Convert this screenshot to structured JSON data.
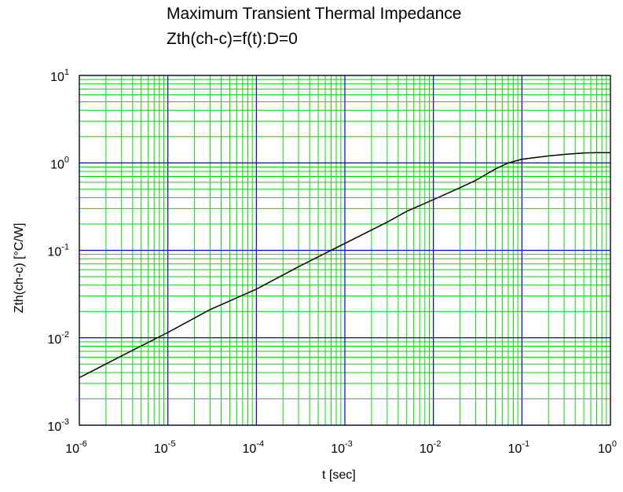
{
  "chart_data": {
    "type": "line",
    "title": "Maximum Transient Thermal Impedance",
    "subtitle": "Zth(ch-c)=f(t):D=0",
    "xlabel": "t [sec]",
    "ylabel": "Zth(ch-c) [°C/W]",
    "x_scale": "log",
    "y_scale": "log",
    "xlim": [
      1e-06,
      1
    ],
    "ylim": [
      0.001,
      10
    ],
    "grid": true,
    "colors": {
      "major_grid": "#0000cc",
      "minor_grid": "#00dd00",
      "curve": "#000000"
    },
    "x_tick_labels": [
      {
        "base": "10",
        "exp": "-6"
      },
      {
        "base": "10",
        "exp": "-5"
      },
      {
        "base": "10",
        "exp": "-4"
      },
      {
        "base": "10",
        "exp": "-3"
      },
      {
        "base": "10",
        "exp": "-2"
      },
      {
        "base": "10",
        "exp": "-1"
      },
      {
        "base": "10",
        "exp": "0"
      }
    ],
    "y_tick_labels": [
      {
        "base": "10",
        "exp": "-3"
      },
      {
        "base": "10",
        "exp": "-2"
      },
      {
        "base": "10",
        "exp": "-1"
      },
      {
        "base": "10",
        "exp": "0"
      },
      {
        "base": "10",
        "exp": "1"
      }
    ],
    "series": [
      {
        "x": [
          1e-06,
          3e-06,
          1e-05,
          3e-05,
          0.0001,
          0.0003,
          0.001,
          0.003,
          0.005,
          0.01,
          0.02,
          0.03,
          0.05,
          0.07,
          0.1,
          0.2,
          0.3,
          0.5,
          0.7,
          1
        ],
        "y": [
          0.0035,
          0.0062,
          0.0115,
          0.021,
          0.036,
          0.065,
          0.12,
          0.21,
          0.28,
          0.38,
          0.52,
          0.63,
          0.85,
          1.0,
          1.1,
          1.2,
          1.25,
          1.3,
          1.31,
          1.31
        ]
      }
    ]
  }
}
